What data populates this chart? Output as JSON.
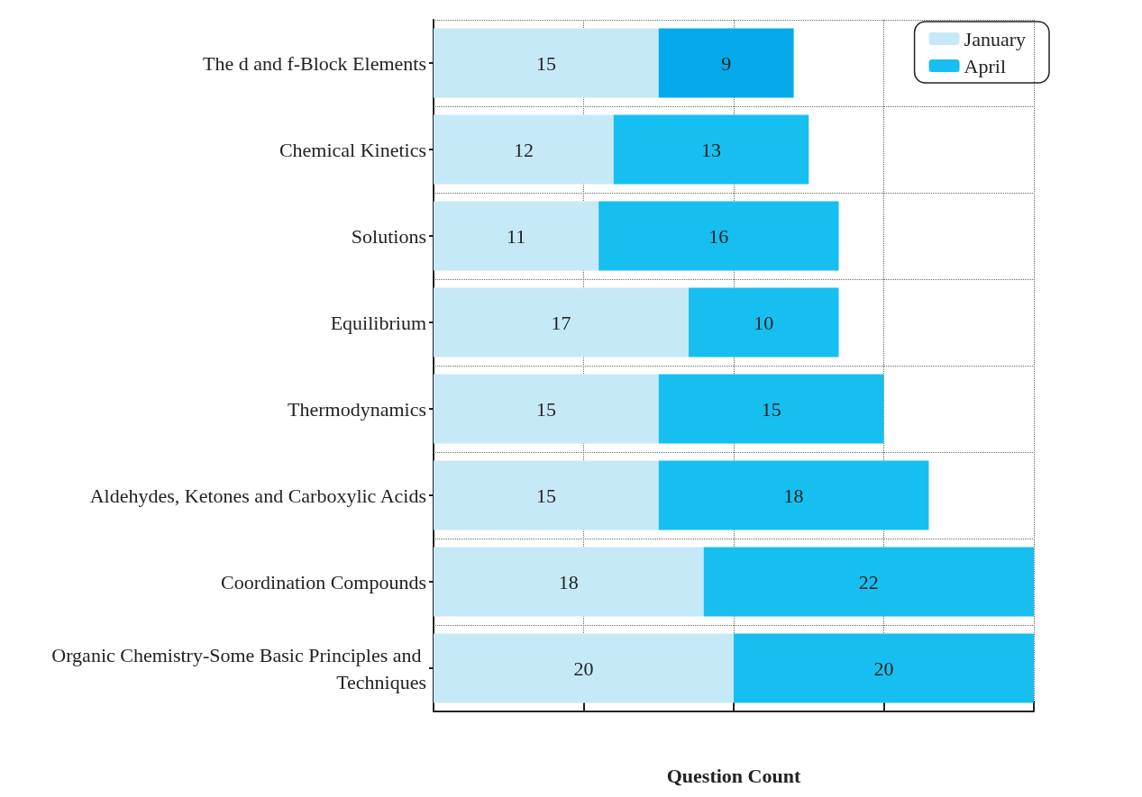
{
  "chart_data": {
    "type": "bar",
    "orientation": "horizontal",
    "stacked": true,
    "xlabel": "Question Count",
    "categories": [
      "The d and f-Block Elements",
      "Chemical Kinetics",
      "Solutions",
      "Equilibrium",
      "Thermodynamics",
      "Aldehydes, Ketones and Carboxylic Acids",
      "Coordination Compounds",
      "Organic Chemistry-Some Basic Principles and Techniques"
    ],
    "series": [
      {
        "name": "January",
        "color": "#c6e9f8",
        "values": [
          15,
          12,
          11,
          17,
          15,
          15,
          18,
          20
        ]
      },
      {
        "name": "April",
        "color": "#17bff0",
        "colors": [
          "#05aaea",
          "#17bff0",
          "#17bff0",
          "#17bff0",
          "#17bff0",
          "#17bff0",
          "#17bff0",
          "#17bff0"
        ],
        "values": [
          9,
          13,
          16,
          10,
          15,
          18,
          22,
          20
        ]
      }
    ],
    "data_labels": true,
    "grid": true,
    "legend": "top right",
    "tick_labels": "y"
  }
}
